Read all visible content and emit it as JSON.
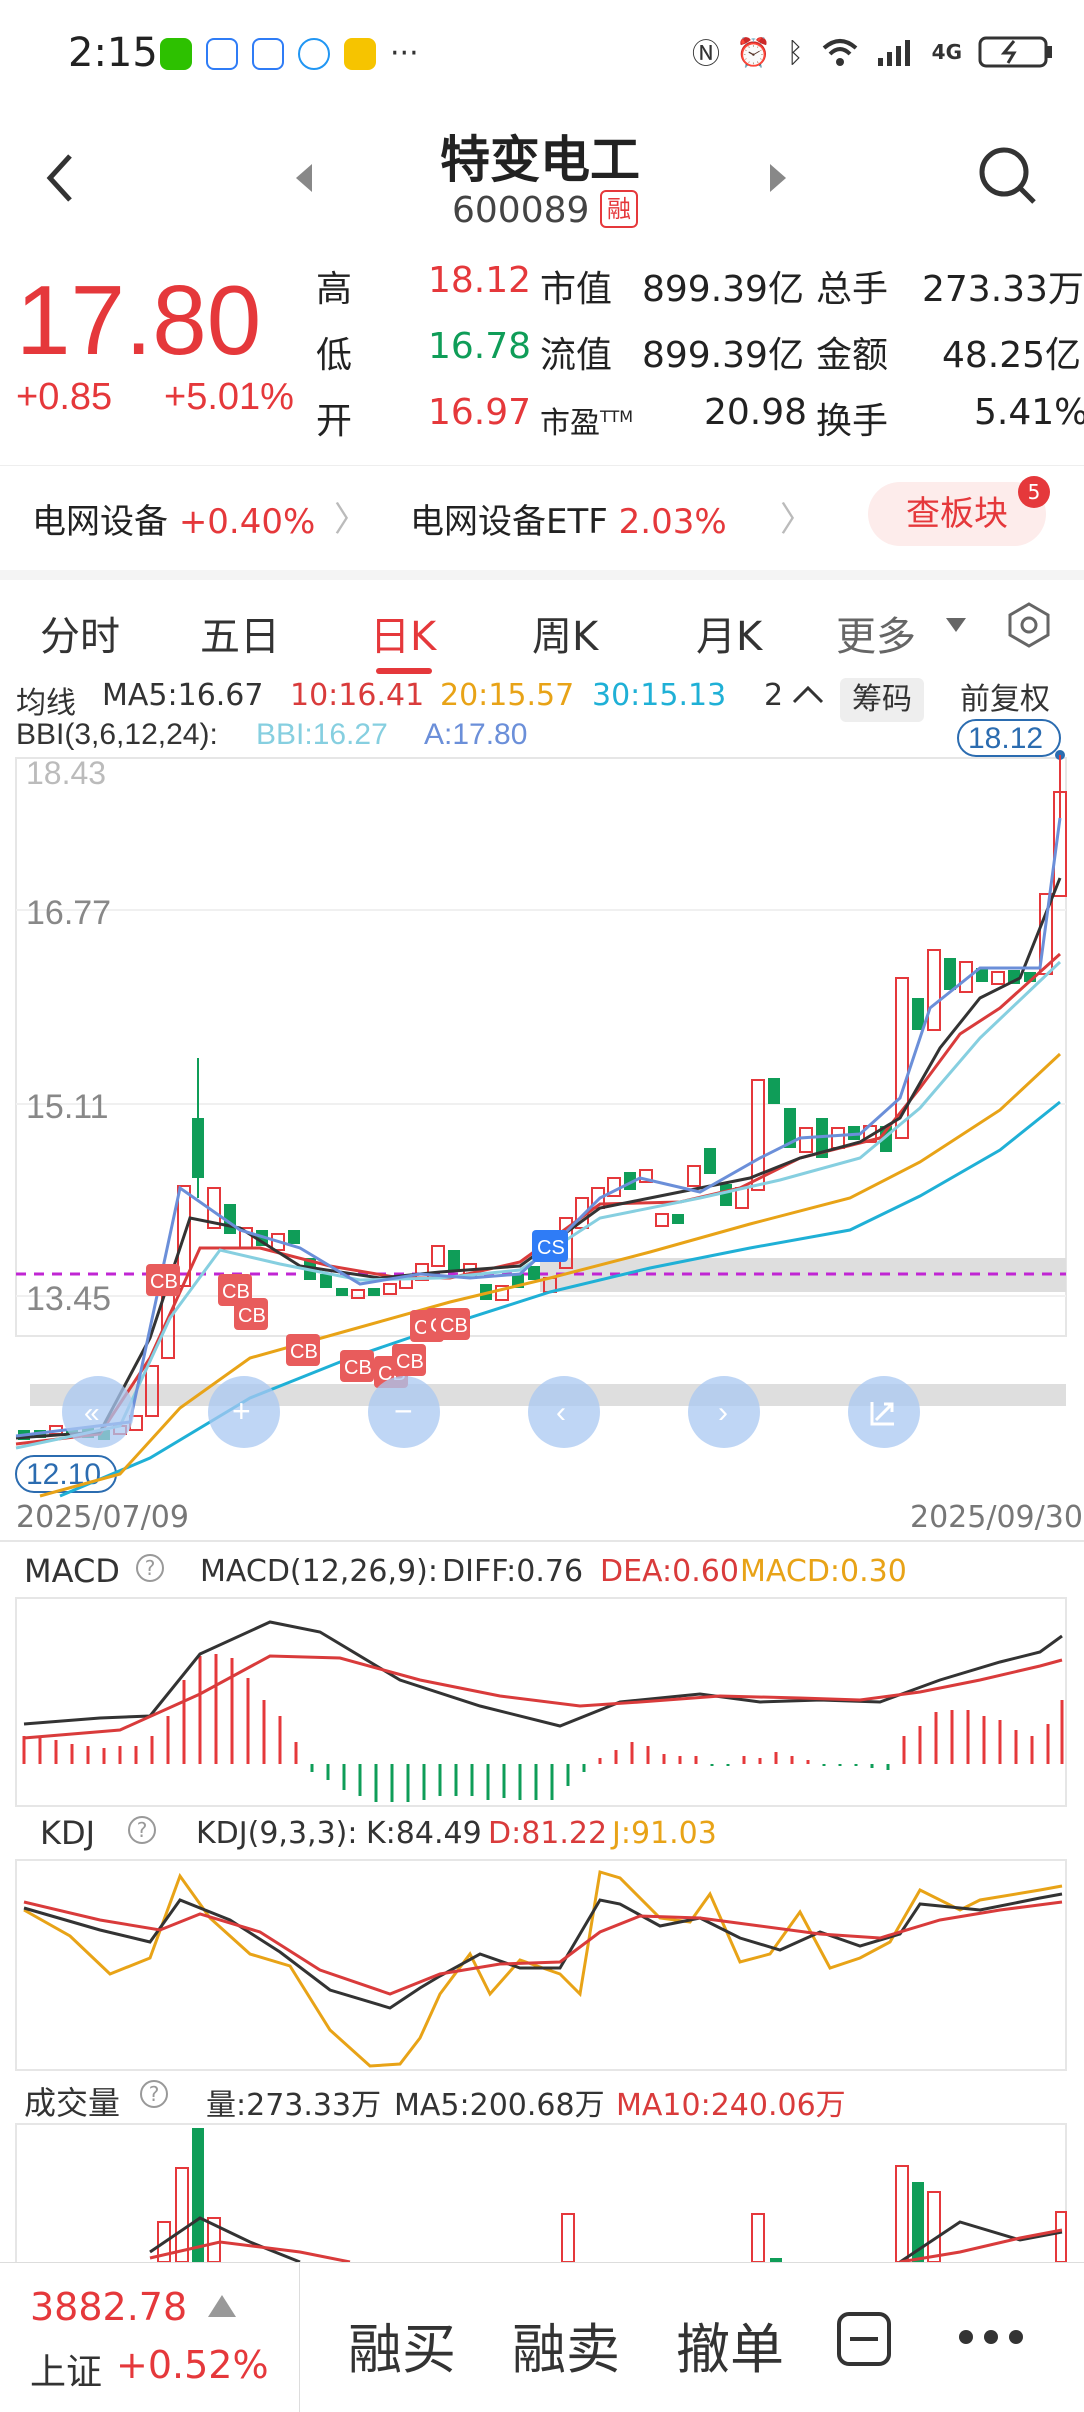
{
  "status": {
    "time": "2:15",
    "more": "···",
    "network": "4G"
  },
  "header": {
    "back_icon": "chevron-left-icon",
    "title": "特变电工",
    "code": "600089",
    "margin_badge": "融",
    "search_icon": "search-icon"
  },
  "quote": {
    "price": "17.80",
    "change": "+0.85",
    "change_pct": "+5.01%",
    "rows": [
      {
        "l1": "高",
        "v1": "18.12",
        "l2": "市值",
        "v2": "899.39亿",
        "l3": "总手",
        "v3": "273.33万"
      },
      {
        "l1": "低",
        "v1": "16.78",
        "l2": "流值",
        "v2": "899.39亿",
        "l3": "金额",
        "v3": "48.25亿"
      },
      {
        "l1": "开",
        "v1": "16.97",
        "l2": "市盈",
        "l2sup": "TTM",
        "v2": "20.98",
        "l3": "换手",
        "v3": "5.41%"
      }
    ]
  },
  "sector": {
    "item1_name": "电网设备",
    "item1_value": "+0.40%",
    "item2_name": "电网设备ETF",
    "item2_value": "2.03%",
    "button": "查板块",
    "badge": "5"
  },
  "tabs": [
    "分时",
    "五日",
    "日K",
    "周K",
    "月K",
    "更多"
  ],
  "active_tab": "日K",
  "ma_legend": {
    "label": "均线",
    "ma5": "MA5:16.67",
    "ma10": "10:16.41",
    "ma20": "20:15.57",
    "ma30": "30:15.13",
    "count": "2",
    "chip_button": "筹码",
    "adjust_button": "前复权"
  },
  "bbi_legend": {
    "label": "BBI(3,6,12,24):",
    "bbi": "BBI:16.27",
    "a": "A:17.80"
  },
  "kchart": {
    "y_labels": [
      "18.43",
      "16.77",
      "15.11",
      "13.45"
    ],
    "high_label": "18.12",
    "low_label": "12.10",
    "start_date": "2025/07/09",
    "end_date": "2025/09/30",
    "markers": [
      "CB",
      "CB",
      "CB",
      "CB",
      "CB",
      "CB",
      "CB",
      "CB",
      "CC",
      "CB",
      "CS"
    ]
  },
  "macd": {
    "label": "MACD",
    "params": "MACD(12,26,9):",
    "diff": "DIFF:0.76",
    "dea": "DEA:0.60",
    "macd": "MACD:0.30"
  },
  "kdj": {
    "label": "KDJ",
    "params": "KDJ(9,3,3):",
    "k": "K:84.49",
    "d": "D:81.22",
    "j": "J:91.03"
  },
  "volume": {
    "label": "成交量",
    "vol": "量:273.33万",
    "ma5": "MA5:200.68万",
    "ma10": "MA10:240.06万"
  },
  "bottom": {
    "index_value": "3882.78",
    "index_name": "上证",
    "index_change": "+0.52%",
    "buy": "融买",
    "sell": "融卖",
    "cancel": "撤单"
  },
  "colors": {
    "up": "#e5383b",
    "down": "#0f9d58",
    "ma5": "#333333",
    "ma10": "#d93b3b",
    "ma20": "#e8a317",
    "ma30": "#1fb0d6",
    "bbi": "#86cfe0",
    "a": "#6b8fd9"
  }
}
